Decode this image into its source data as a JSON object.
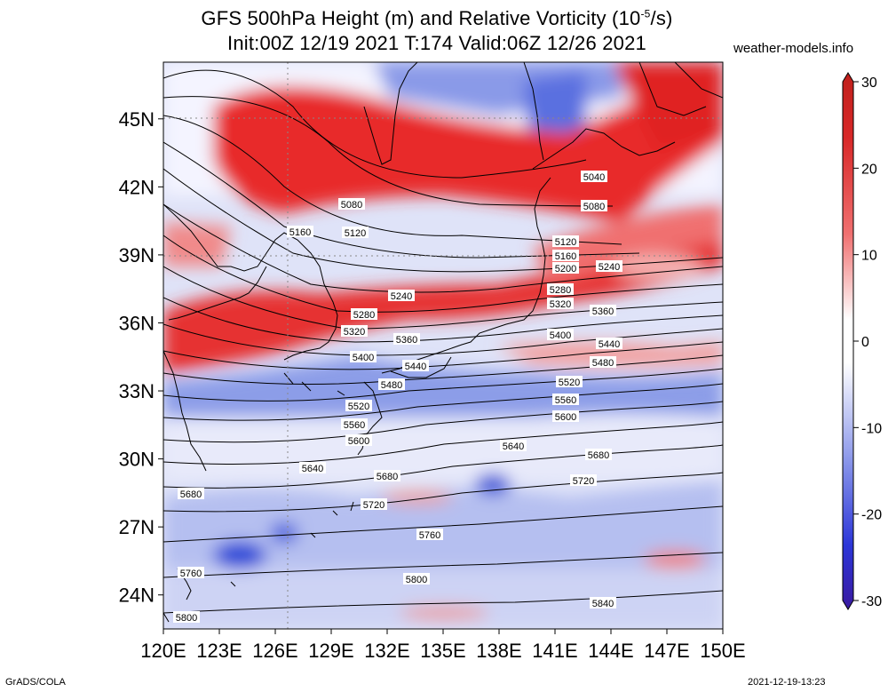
{
  "title": {
    "line1": "GFS 500hPa Height (m) and Relative Vorticity (10",
    "line1_sup": "-5",
    "line1_tail": "/s)",
    "line2": "Init:00Z 12/19 2021 T:174 Valid:06Z 12/26 2021"
  },
  "site": "weather-models.info",
  "footer": {
    "left": "GrADS/COLA",
    "right": "2021-12-19-13:23"
  },
  "map": {
    "lon_range": [
      120,
      150
    ],
    "lat_range": [
      22.5,
      47.5
    ],
    "lon_ticks": [
      "120E",
      "123E",
      "126E",
      "129E",
      "132E",
      "135E",
      "138E",
      "141E",
      "144E",
      "147E",
      "150E"
    ],
    "lon_tick_values": [
      120,
      123,
      126,
      129,
      132,
      135,
      138,
      141,
      144,
      147,
      150
    ],
    "lat_ticks": [
      "24N",
      "27N",
      "30N",
      "33N",
      "36N",
      "39N",
      "42N",
      "45N"
    ],
    "lat_tick_values": [
      24,
      27,
      30,
      33,
      36,
      39,
      42,
      45
    ]
  },
  "colorbar": {
    "labels": [
      "30",
      "20",
      "10",
      "0",
      "-10",
      "-20",
      "-30"
    ],
    "values": [
      30,
      20,
      10,
      0,
      -10,
      -20,
      -30
    ],
    "min": -30,
    "max": 30,
    "colors": {
      "neg_max": "#3a1aa0",
      "neg_mid": "#2c3ee0",
      "neutral": "#ffffff",
      "pos_mid": "#e83030",
      "pos_max": "#c0201c"
    }
  },
  "contours": [
    {
      "label": "5040",
      "value": 5040
    },
    {
      "label": "5080",
      "value": 5080
    },
    {
      "label": "5120",
      "value": 5120
    },
    {
      "label": "5160",
      "value": 5160
    },
    {
      "label": "5200",
      "value": 5200
    },
    {
      "label": "5240",
      "value": 5240
    },
    {
      "label": "5280",
      "value": 5280
    },
    {
      "label": "5320",
      "value": 5320
    },
    {
      "label": "5360",
      "value": 5360
    },
    {
      "label": "5400",
      "value": 5400
    },
    {
      "label": "5440",
      "value": 5440
    },
    {
      "label": "5480",
      "value": 5480
    },
    {
      "label": "5520",
      "value": 5520
    },
    {
      "label": "5560",
      "value": 5560
    },
    {
      "label": "5600",
      "value": 5600
    },
    {
      "label": "5640",
      "value": 5640
    },
    {
      "label": "5680",
      "value": 5680
    },
    {
      "label": "5720",
      "value": 5720
    },
    {
      "label": "5760",
      "value": 5760
    },
    {
      "label": "5800",
      "value": 5800
    },
    {
      "label": "5840",
      "value": 5840
    }
  ]
}
